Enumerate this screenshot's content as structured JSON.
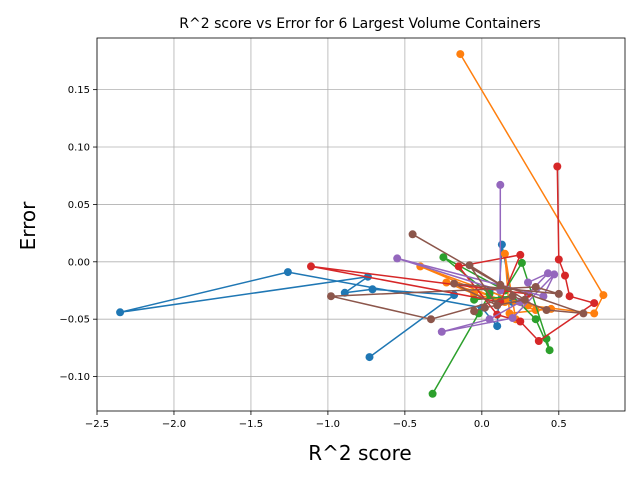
{
  "chart_data": {
    "type": "line",
    "title": "R^2 score vs Error for 6 Largest Volume Containers",
    "xlabel": "R^2 score",
    "ylabel": "Error",
    "xlim": [
      -2.5,
      0.93
    ],
    "ylim": [
      -0.13,
      0.195
    ],
    "xticks": [
      -2.5,
      -2.0,
      -1.5,
      -1.0,
      -0.5,
      0.0,
      0.5
    ],
    "xtick_labels": [
      "−2.5",
      "−2.0",
      "−1.5",
      "−1.0",
      "−0.5",
      "0.0",
      "0.5"
    ],
    "yticks": [
      -0.1,
      -0.05,
      0.0,
      0.05,
      0.1,
      0.15
    ],
    "ytick_labels": [
      "−0.10",
      "−0.05",
      "0.00",
      "0.05",
      "0.10",
      "0.15"
    ],
    "grid": true,
    "legend": "none",
    "series": [
      {
        "color": "#1f77b4",
        "points": [
          [
            -0.73,
            -0.083
          ],
          [
            -0.18,
            -0.029
          ],
          [
            -0.71,
            -0.024
          ],
          [
            -0.89,
            -0.027
          ],
          [
            -0.74,
            -0.013
          ],
          [
            -2.35,
            -0.044
          ],
          [
            -1.26,
            -0.009
          ],
          [
            0.0,
            -0.04
          ],
          [
            0.1,
            -0.056
          ],
          [
            0.13,
            0.015
          ],
          [
            0.2,
            -0.035
          ],
          [
            0.05,
            -0.025
          ]
        ]
      },
      {
        "color": "#ff7f0e",
        "points": [
          [
            -0.14,
            0.181
          ],
          [
            0.79,
            -0.029
          ],
          [
            0.73,
            -0.045
          ],
          [
            0.3,
            -0.038
          ],
          [
            -0.4,
            -0.004
          ],
          [
            0.15,
            -0.035
          ],
          [
            -0.05,
            -0.028
          ],
          [
            -0.23,
            -0.018
          ],
          [
            0.35,
            -0.042
          ],
          [
            0.45,
            -0.041
          ],
          [
            0.18,
            -0.045
          ],
          [
            0.15,
            0.007
          ],
          [
            0.22,
            -0.05
          ]
        ]
      },
      {
        "color": "#2ca02c",
        "points": [
          [
            -0.32,
            -0.115
          ],
          [
            -0.02,
            -0.045
          ],
          [
            0.05,
            -0.028
          ],
          [
            -0.25,
            0.004
          ],
          [
            0.15,
            -0.025
          ],
          [
            0.26,
            -0.001
          ],
          [
            0.42,
            -0.067
          ],
          [
            0.44,
            -0.077
          ],
          [
            0.35,
            -0.05
          ],
          [
            0.2,
            -0.03
          ],
          [
            -0.05,
            -0.033
          ]
        ]
      },
      {
        "color": "#d62728",
        "points": [
          [
            0.49,
            0.083
          ],
          [
            0.5,
            0.002
          ],
          [
            0.54,
            -0.012
          ],
          [
            0.57,
            -0.03
          ],
          [
            0.73,
            -0.036
          ],
          [
            0.37,
            -0.069
          ],
          [
            0.25,
            -0.052
          ],
          [
            0.1,
            -0.046
          ],
          [
            -0.15,
            -0.004
          ],
          [
            0.25,
            0.006
          ],
          [
            0.12,
            -0.035
          ],
          [
            -1.11,
            -0.004
          ],
          [
            0.3,
            -0.028
          ]
        ]
      },
      {
        "color": "#9467bd",
        "points": [
          [
            0.12,
            0.067
          ],
          [
            0.12,
            -0.025
          ],
          [
            -0.55,
            0.003
          ],
          [
            0.4,
            -0.03
          ],
          [
            0.47,
            -0.011
          ],
          [
            0.2,
            -0.049
          ],
          [
            -0.26,
            -0.061
          ],
          [
            0.05,
            -0.05
          ],
          [
            0.25,
            -0.035
          ],
          [
            0.43,
            -0.01
          ],
          [
            0.3,
            -0.018
          ]
        ]
      },
      {
        "color": "#8c564b",
        "points": [
          [
            -0.45,
            0.024
          ],
          [
            0.12,
            -0.02
          ],
          [
            0.66,
            -0.045
          ],
          [
            0.42,
            -0.042
          ],
          [
            0.2,
            -0.03
          ],
          [
            -0.33,
            -0.05
          ],
          [
            -0.98,
            -0.03
          ],
          [
            0.35,
            -0.022
          ],
          [
            0.5,
            -0.028
          ],
          [
            -0.18,
            -0.019
          ],
          [
            0.1,
            -0.038
          ],
          [
            -0.08,
            -0.003
          ],
          [
            0.28,
            -0.033
          ],
          [
            0.02,
            -0.04
          ],
          [
            -0.05,
            -0.043
          ]
        ]
      }
    ]
  }
}
